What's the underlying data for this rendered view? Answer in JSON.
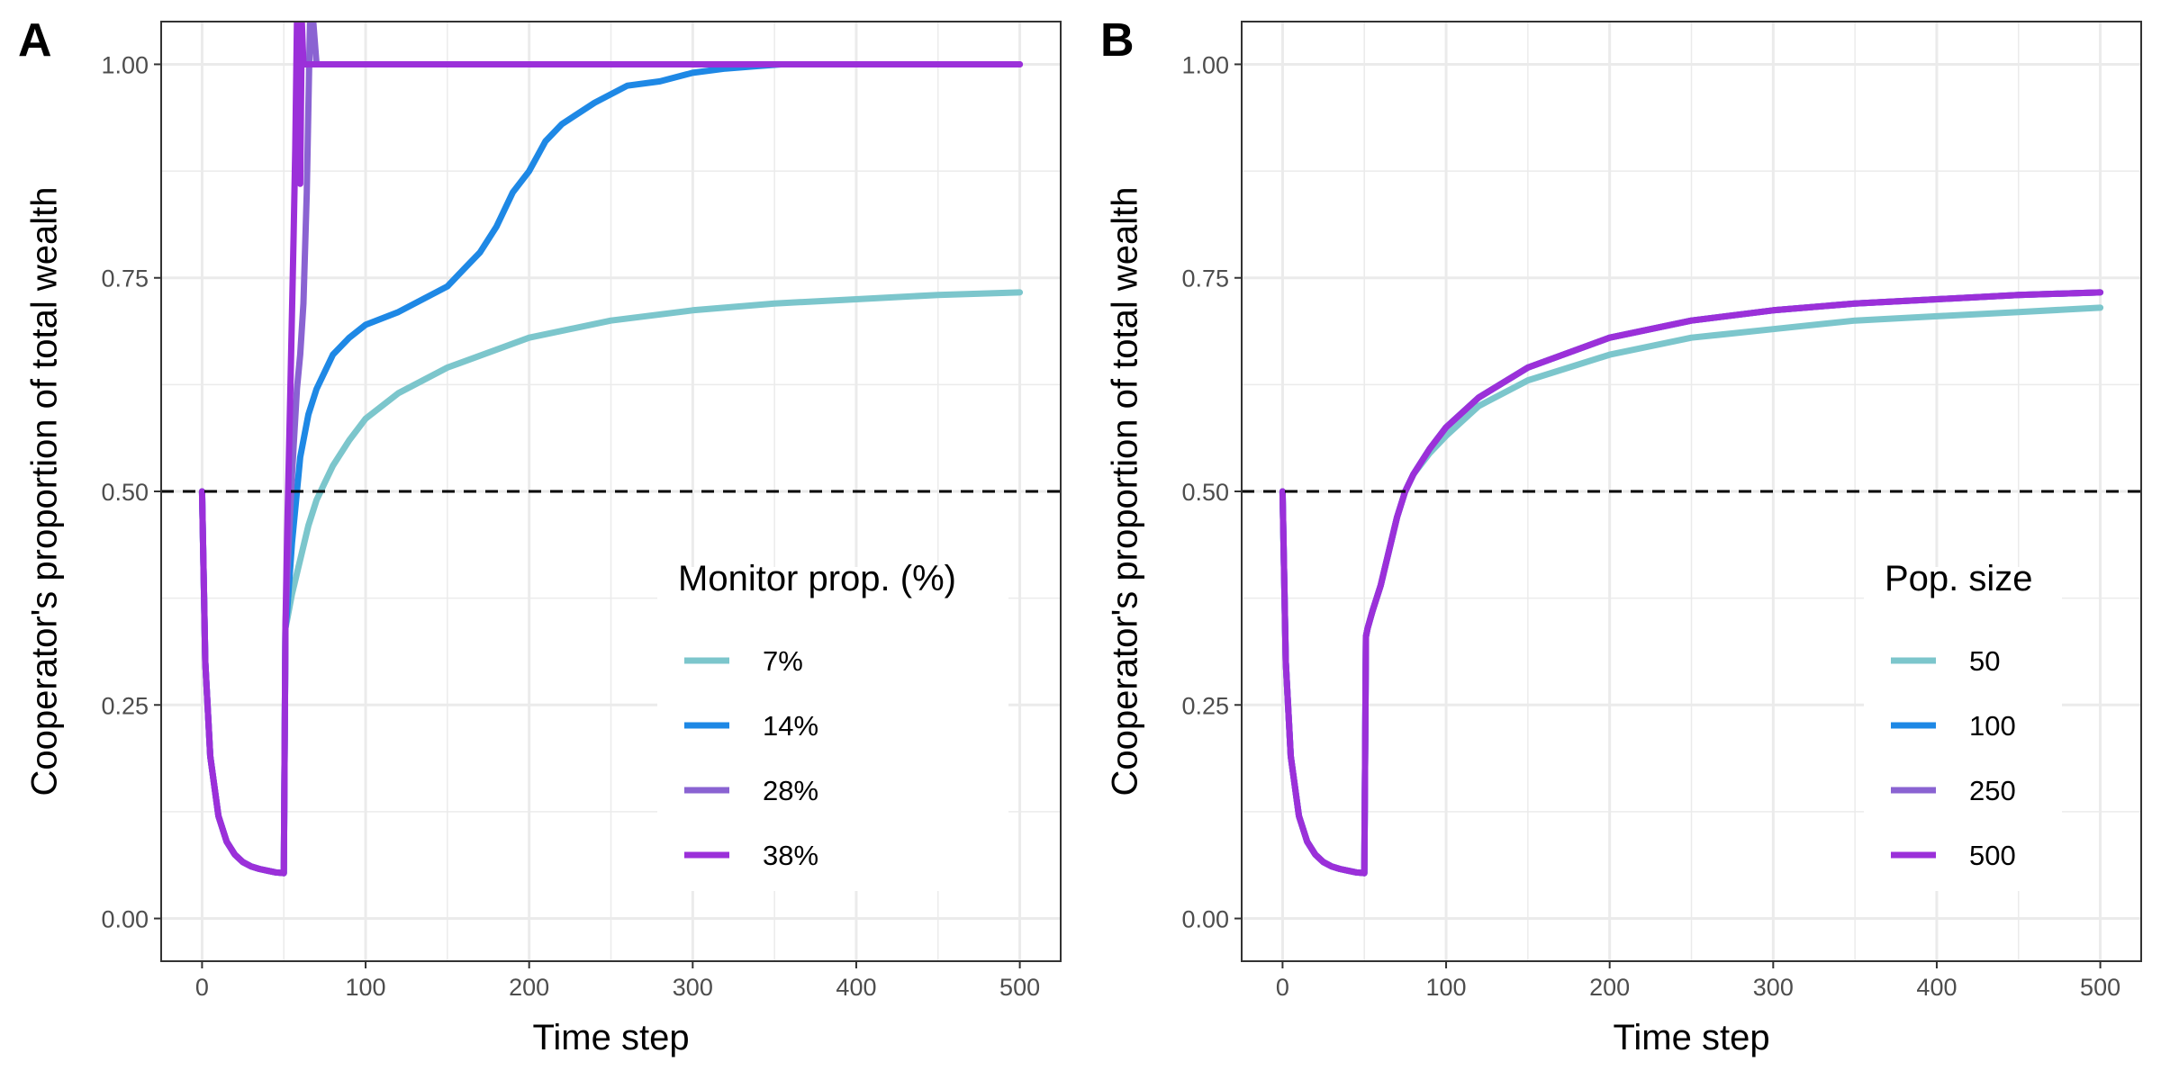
{
  "chart_data": [
    {
      "type": "line",
      "panel_tag": "A",
      "xlabel": "Time step",
      "ylabel": "Cooperator's proportion of total wealth",
      "xlim": [
        -25,
        525
      ],
      "ylim": [
        -0.05,
        1.05
      ],
      "x_ticks": [
        "0",
        "100",
        "200",
        "300",
        "400",
        "500"
      ],
      "y_ticks": [
        "0.00",
        "0.25",
        "0.50",
        "0.75",
        "1.00"
      ],
      "reference_line": {
        "y": 0.5,
        "style": "dashed"
      },
      "grid": true,
      "legend": {
        "title": "Monitor prop. (%)",
        "placement": "bottom-right"
      },
      "series": [
        {
          "name": "7%",
          "color": "#7cc6cc",
          "x": [
            0,
            2,
            5,
            10,
            15,
            20,
            25,
            30,
            35,
            40,
            45,
            50,
            51,
            52,
            55,
            60,
            65,
            70,
            75,
            80,
            90,
            100,
            120,
            150,
            200,
            250,
            300,
            350,
            400,
            450,
            500
          ],
          "y": [
            0.5,
            0.3,
            0.19,
            0.12,
            0.09,
            0.075,
            0.066,
            0.061,
            0.058,
            0.056,
            0.054,
            0.053,
            0.34,
            0.35,
            0.38,
            0.42,
            0.46,
            0.49,
            0.51,
            0.53,
            0.56,
            0.585,
            0.615,
            0.645,
            0.68,
            0.7,
            0.712,
            0.72,
            0.725,
            0.73,
            0.733
          ]
        },
        {
          "name": "14%",
          "color": "#1e88e5",
          "x": [
            0,
            2,
            5,
            10,
            15,
            20,
            25,
            30,
            35,
            40,
            45,
            50,
            51,
            52,
            55,
            58,
            60,
            65,
            70,
            80,
            90,
            100,
            120,
            150,
            160,
            170,
            180,
            190,
            200,
            210,
            220,
            240,
            260,
            280,
            300,
            320,
            340,
            354
          ],
          "y": [
            0.5,
            0.3,
            0.19,
            0.12,
            0.09,
            0.075,
            0.066,
            0.061,
            0.058,
            0.056,
            0.054,
            0.053,
            0.34,
            0.36,
            0.44,
            0.5,
            0.54,
            0.59,
            0.62,
            0.66,
            0.68,
            0.695,
            0.71,
            0.74,
            0.76,
            0.78,
            0.81,
            0.85,
            0.875,
            0.91,
            0.93,
            0.955,
            0.975,
            0.98,
            0.99,
            0.995,
            0.998,
            1.0
          ]
        },
        {
          "name": "28%",
          "color": "#8a63d2",
          "x": [
            0,
            2,
            5,
            10,
            15,
            20,
            25,
            30,
            35,
            40,
            45,
            50,
            51,
            52,
            55,
            58,
            60,
            62,
            64,
            66,
            68,
            70,
            80,
            100,
            200,
            300,
            400,
            500
          ],
          "y": [
            0.5,
            0.3,
            0.19,
            0.12,
            0.09,
            0.075,
            0.066,
            0.061,
            0.058,
            0.056,
            0.054,
            0.053,
            0.34,
            0.4,
            0.52,
            0.62,
            0.66,
            0.72,
            0.85,
            1.05,
            1.05,
            1.0,
            1.0,
            1.0,
            1.0,
            1.0,
            1.0,
            1.0
          ]
        },
        {
          "name": "38%",
          "color": "#9b30d9",
          "x": [
            0,
            2,
            5,
            10,
            15,
            20,
            25,
            30,
            35,
            40,
            45,
            50,
            51,
            52,
            54,
            56,
            57,
            58,
            59,
            60,
            61,
            62,
            64,
            66,
            68,
            70,
            80,
            100,
            200,
            300,
            400,
            500
          ],
          "y": [
            0.5,
            0.3,
            0.19,
            0.12,
            0.09,
            0.075,
            0.066,
            0.061,
            0.058,
            0.056,
            0.054,
            0.053,
            0.34,
            0.45,
            0.62,
            0.8,
            0.9,
            1.05,
            1.05,
            0.86,
            1.05,
            1.0,
            1.0,
            1.0,
            1.0,
            1.0,
            1.0,
            1.0,
            1.0,
            1.0,
            1.0,
            1.0
          ]
        }
      ]
    },
    {
      "type": "line",
      "panel_tag": "B",
      "xlabel": "Time step",
      "ylabel": "Cooperator's proportion of total wealth",
      "xlim": [
        -25,
        525
      ],
      "ylim": [
        -0.05,
        1.05
      ],
      "x_ticks": [
        "0",
        "100",
        "200",
        "300",
        "400",
        "500"
      ],
      "y_ticks": [
        "0.00",
        "0.25",
        "0.50",
        "0.75",
        "1.00"
      ],
      "reference_line": {
        "y": 0.5,
        "style": "dashed"
      },
      "grid": true,
      "legend": {
        "title": "Pop. size",
        "placement": "bottom-right"
      },
      "series": [
        {
          "name": "50",
          "color": "#7cc6cc",
          "x": [
            0,
            2,
            5,
            10,
            15,
            20,
            25,
            30,
            35,
            40,
            45,
            50,
            51,
            52,
            55,
            60,
            65,
            70,
            75,
            80,
            90,
            100,
            120,
            150,
            200,
            250,
            300,
            350,
            400,
            450,
            500
          ],
          "y": [
            0.5,
            0.3,
            0.19,
            0.12,
            0.09,
            0.075,
            0.066,
            0.061,
            0.058,
            0.056,
            0.054,
            0.053,
            0.33,
            0.34,
            0.36,
            0.39,
            0.43,
            0.47,
            0.5,
            0.52,
            0.545,
            0.565,
            0.6,
            0.63,
            0.66,
            0.68,
            0.69,
            0.7,
            0.705,
            0.71,
            0.715
          ]
        },
        {
          "name": "100",
          "color": "#1e88e5",
          "x": [
            0,
            2,
            5,
            10,
            15,
            20,
            25,
            30,
            35,
            40,
            45,
            50,
            51,
            52,
            55,
            60,
            65,
            70,
            75,
            80,
            90,
            100,
            120,
            150,
            200,
            250,
            300,
            350,
            400,
            450,
            500
          ],
          "y": [
            0.5,
            0.3,
            0.19,
            0.12,
            0.09,
            0.075,
            0.066,
            0.061,
            0.058,
            0.056,
            0.054,
            0.053,
            0.33,
            0.34,
            0.36,
            0.39,
            0.43,
            0.47,
            0.5,
            0.52,
            0.55,
            0.575,
            0.61,
            0.645,
            0.68,
            0.7,
            0.712,
            0.72,
            0.725,
            0.73,
            0.733
          ]
        },
        {
          "name": "250",
          "color": "#8a63d2",
          "x": [
            0,
            2,
            5,
            10,
            15,
            20,
            25,
            30,
            35,
            40,
            45,
            50,
            51,
            52,
            55,
            60,
            65,
            70,
            75,
            80,
            90,
            100,
            120,
            150,
            200,
            250,
            300,
            350,
            400,
            450,
            500
          ],
          "y": [
            0.5,
            0.3,
            0.19,
            0.12,
            0.09,
            0.075,
            0.066,
            0.061,
            0.058,
            0.056,
            0.054,
            0.053,
            0.33,
            0.34,
            0.36,
            0.39,
            0.43,
            0.47,
            0.5,
            0.52,
            0.55,
            0.575,
            0.61,
            0.645,
            0.68,
            0.7,
            0.712,
            0.72,
            0.725,
            0.73,
            0.733
          ]
        },
        {
          "name": "500",
          "color": "#9b30d9",
          "x": [
            0,
            2,
            5,
            10,
            15,
            20,
            25,
            30,
            35,
            40,
            45,
            50,
            51,
            52,
            55,
            60,
            65,
            70,
            75,
            80,
            90,
            100,
            120,
            150,
            200,
            250,
            300,
            350,
            400,
            450,
            500
          ],
          "y": [
            0.5,
            0.3,
            0.19,
            0.12,
            0.09,
            0.075,
            0.066,
            0.061,
            0.058,
            0.056,
            0.054,
            0.053,
            0.33,
            0.34,
            0.36,
            0.39,
            0.43,
            0.47,
            0.5,
            0.52,
            0.55,
            0.575,
            0.61,
            0.645,
            0.68,
            0.7,
            0.712,
            0.72,
            0.725,
            0.73,
            0.733
          ]
        }
      ]
    }
  ]
}
